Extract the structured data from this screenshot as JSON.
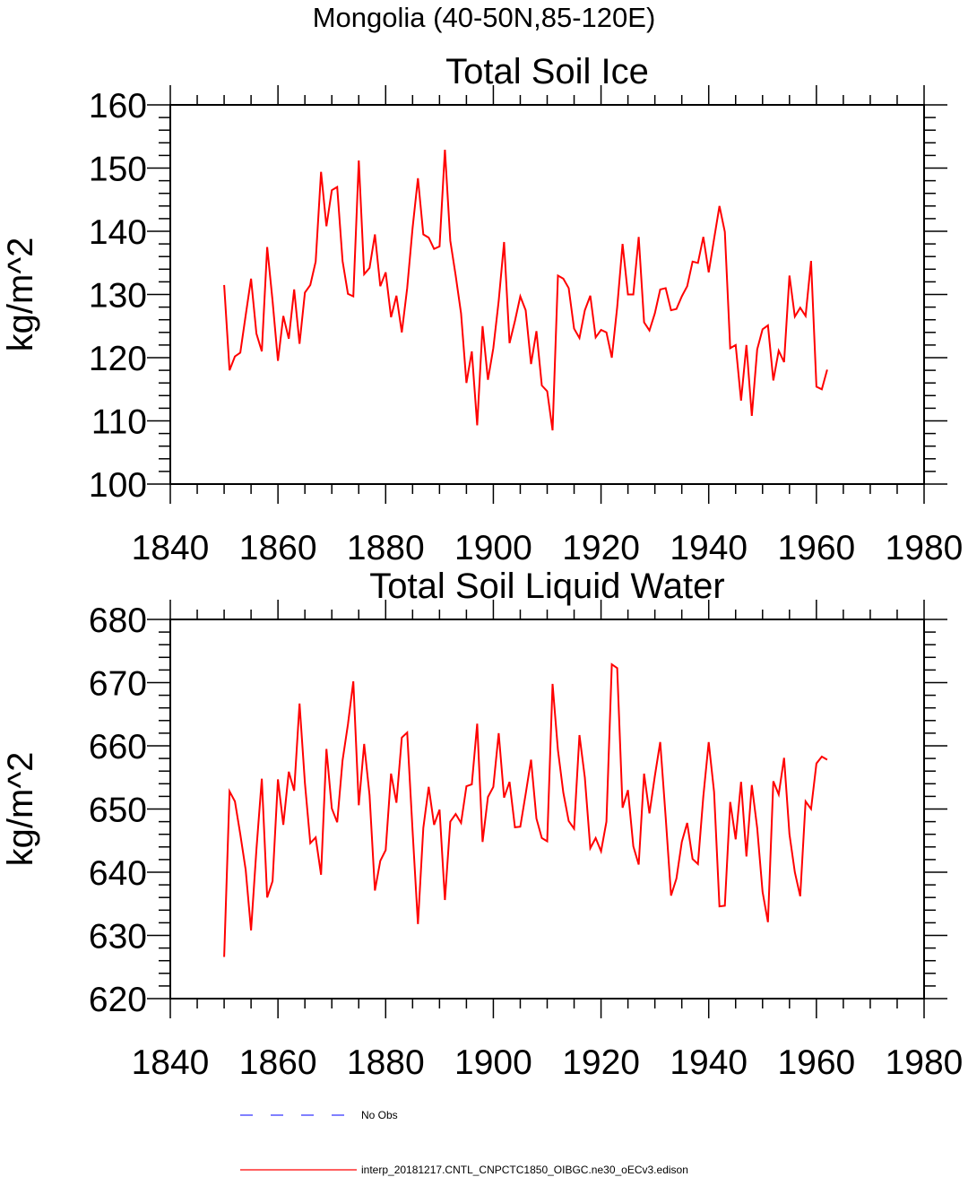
{
  "suptitle": "Mongolia (40-50N,85-120E)",
  "colors": {
    "model": "#ff0000",
    "obs": "#0000ff",
    "axis": "#000000"
  },
  "legend": {
    "obs_label": "No Obs",
    "model_label": "interp_20181217.CNTL_CNPCTC1850_OIBGC.ne30_oECv3.edison"
  },
  "chart_data": [
    {
      "type": "line",
      "title": "Total Soil Ice",
      "xlabel": "",
      "ylabel": "kg/m^2",
      "xlim": [
        1840,
        1980
      ],
      "ylim": [
        100,
        160
      ],
      "xticks": [
        1840,
        1860,
        1880,
        1900,
        1920,
        1940,
        1960,
        1980
      ],
      "yticks": [
        100,
        110,
        120,
        130,
        140,
        150,
        160
      ],
      "x_start": 1850,
      "series": [
        {
          "name": "interp_20181217.CNTL_CNPCTC1850_OIBGC.ne30_oECv3.edison",
          "color": "#ff0000",
          "values": [
            131.5,
            118.0,
            120.2,
            120.8,
            126.7,
            132.5,
            123.8,
            121.0,
            137.5,
            129.0,
            119.5,
            126.6,
            123.0,
            130.8,
            122.2,
            130.3,
            131.5,
            135.2,
            149.4,
            140.8,
            146.5,
            147.0,
            135.3,
            130.1,
            129.7,
            151.2,
            133.2,
            134.2,
            139.5,
            131.3,
            133.5,
            126.4,
            129.8,
            124.0,
            131.0,
            140.5,
            148.4,
            139.5,
            139.0,
            137.2,
            137.6,
            152.9,
            138.5,
            133.0,
            127.0,
            116.0,
            121.0,
            109.3,
            125.0,
            116.5,
            121.5,
            129.0,
            138.3,
            122.3,
            125.8,
            129.7,
            127.5,
            119.0,
            124.2,
            115.6,
            114.7,
            108.5,
            133.0,
            132.5,
            131.0,
            124.6,
            123.1,
            127.5,
            129.8,
            123.2,
            124.4,
            124.0,
            120.0,
            128.0,
            138.0,
            130.0,
            130.0,
            139.1,
            125.6,
            124.3,
            127.0,
            130.8,
            131.0,
            127.5,
            127.7,
            129.7,
            131.3,
            135.2,
            135.0,
            139.1,
            133.5,
            138.8,
            144.0,
            139.9,
            121.5,
            122.0,
            113.2,
            122.0,
            110.8,
            121.3,
            124.5,
            125.1,
            116.4,
            121.1,
            119.3,
            133.0,
            126.5,
            127.9,
            126.6,
            135.3,
            115.4,
            115.0,
            118.1
          ]
        }
      ]
    },
    {
      "type": "line",
      "title": "Total Soil Liquid Water",
      "xlabel": "",
      "ylabel": "kg/m^2",
      "xlim": [
        1840,
        1980
      ],
      "ylim": [
        620,
        680
      ],
      "xticks": [
        1840,
        1860,
        1880,
        1900,
        1920,
        1940,
        1960,
        1980
      ],
      "yticks": [
        620,
        630,
        640,
        650,
        660,
        670,
        680
      ],
      "x_start": 1850,
      "series": [
        {
          "name": "interp_20181217.CNTL_CNPCTC1850_OIBGC.ne30_oECv3.edison",
          "color": "#ff0000",
          "values": [
            626.6,
            652.8,
            651.2,
            646.0,
            640.4,
            630.8,
            643.6,
            654.8,
            636.0,
            638.6,
            654.7,
            647.5,
            655.9,
            652.9,
            666.7,
            654.1,
            644.6,
            645.5,
            639.6,
            659.5,
            650.1,
            647.9,
            657.7,
            663.4,
            670.2,
            650.6,
            660.3,
            652.2,
            637.1,
            641.8,
            643.5,
            655.6,
            651.0,
            661.3,
            662.1,
            646.6,
            631.8,
            647.0,
            653.5,
            647.5,
            649.9,
            635.6,
            648.0,
            649.2,
            647.8,
            653.6,
            653.9,
            663.5,
            644.8,
            651.9,
            653.5,
            662.0,
            651.8,
            654.3,
            647.1,
            647.2,
            652.4,
            657.8,
            648.5,
            645.4,
            644.9,
            669.8,
            659.3,
            652.6,
            648.1,
            646.9,
            661.7,
            655.0,
            643.8,
            645.4,
            643.3,
            648.0,
            672.9,
            672.3,
            650.2,
            653.0,
            644.1,
            641.2,
            655.6,
            649.3,
            655.2,
            660.6,
            648.7,
            636.3,
            639.0,
            644.8,
            647.8,
            642.1,
            641.3,
            652.0,
            660.6,
            652.7,
            634.6,
            634.7,
            651.1,
            645.2,
            654.3,
            642.5,
            653.8,
            647.0,
            636.9,
            632.1,
            654.4,
            652.3,
            658.1,
            646.0,
            640.0,
            636.2,
            651.2,
            650.0,
            657.2,
            658.3,
            657.8
          ]
        }
      ]
    }
  ]
}
